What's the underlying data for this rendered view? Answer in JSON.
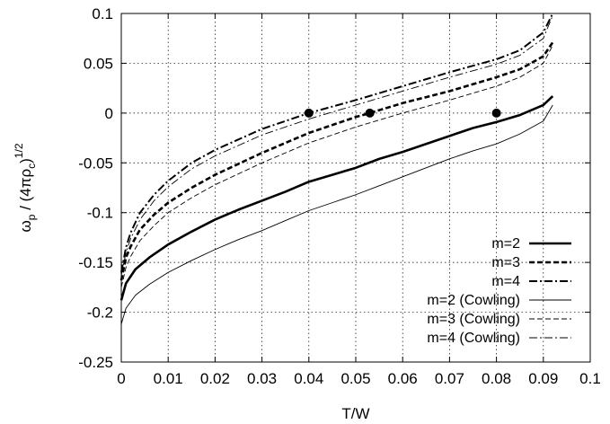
{
  "chart_data": {
    "type": "line",
    "xlabel": "T/W",
    "ylabel": "ω_p / (4πρ_c)^{1/2}",
    "xlim": [
      0,
      0.1
    ],
    "ylim": [
      -0.25,
      0.1
    ],
    "xticks": [
      "0",
      "0.01",
      "0.02",
      "0.03",
      "0.04",
      "0.05",
      "0.06",
      "0.07",
      "0.08",
      "0.09",
      "0.1"
    ],
    "xtick_values": [
      0,
      0.01,
      0.02,
      0.03,
      0.04,
      0.05,
      0.06,
      0.07,
      0.08,
      0.09,
      0.1
    ],
    "yticks": [
      "-0.25",
      "-0.2",
      "-0.15",
      "-0.1",
      "-0.05",
      "0",
      "0.05",
      "0.1"
    ],
    "ytick_values": [
      -0.25,
      -0.2,
      -0.15,
      -0.1,
      -0.05,
      0,
      0.05,
      0.1
    ],
    "grid": true,
    "legend_position": "bottom-right",
    "series": [
      {
        "name": "m=2",
        "style": "solid-thick",
        "points": [
          [
            0,
            -0.188
          ],
          [
            0.001,
            -0.171
          ],
          [
            0.003,
            -0.157
          ],
          [
            0.006,
            -0.145
          ],
          [
            0.01,
            -0.132
          ],
          [
            0.015,
            -0.119
          ],
          [
            0.02,
            -0.107
          ],
          [
            0.025,
            -0.097
          ],
          [
            0.03,
            -0.088
          ],
          [
            0.035,
            -0.079
          ],
          [
            0.04,
            -0.069
          ],
          [
            0.045,
            -0.062
          ],
          [
            0.05,
            -0.055
          ],
          [
            0.055,
            -0.046
          ],
          [
            0.06,
            -0.039
          ],
          [
            0.065,
            -0.031
          ],
          [
            0.07,
            -0.023
          ],
          [
            0.075,
            -0.015
          ],
          [
            0.08,
            -0.009
          ],
          [
            0.085,
            -0.002
          ],
          [
            0.09,
            0.008
          ],
          [
            0.092,
            0.017
          ]
        ]
      },
      {
        "name": "m=3",
        "style": "dashed-thick",
        "points": [
          [
            0,
            -0.168
          ],
          [
            0.001,
            -0.145
          ],
          [
            0.002,
            -0.134
          ],
          [
            0.004,
            -0.117
          ],
          [
            0.007,
            -0.102
          ],
          [
            0.01,
            -0.09
          ],
          [
            0.015,
            -0.075
          ],
          [
            0.02,
            -0.062
          ],
          [
            0.03,
            -0.04
          ],
          [
            0.04,
            -0.02
          ],
          [
            0.05,
            -0.004
          ],
          [
            0.053,
            0.0
          ],
          [
            0.06,
            0.01
          ],
          [
            0.07,
            0.022
          ],
          [
            0.08,
            0.036
          ],
          [
            0.085,
            0.044
          ],
          [
            0.09,
            0.057
          ],
          [
            0.092,
            0.071
          ]
        ]
      },
      {
        "name": "m=4",
        "style": "dashdot-thick",
        "points": [
          [
            0,
            -0.16
          ],
          [
            0.001,
            -0.135
          ],
          [
            0.002,
            -0.12
          ],
          [
            0.004,
            -0.1
          ],
          [
            0.007,
            -0.082
          ],
          [
            0.01,
            -0.068
          ],
          [
            0.015,
            -0.05
          ],
          [
            0.02,
            -0.037
          ],
          [
            0.03,
            -0.016
          ],
          [
            0.04,
            0.0
          ],
          [
            0.05,
            0.013
          ],
          [
            0.06,
            0.027
          ],
          [
            0.07,
            0.041
          ],
          [
            0.08,
            0.054
          ],
          [
            0.085,
            0.063
          ],
          [
            0.09,
            0.081
          ],
          [
            0.092,
            0.1
          ]
        ]
      },
      {
        "name": "m=2 (Cowling)",
        "style": "solid-thin",
        "points": [
          [
            0,
            -0.212
          ],
          [
            0.001,
            -0.196
          ],
          [
            0.003,
            -0.183
          ],
          [
            0.006,
            -0.172
          ],
          [
            0.01,
            -0.16
          ],
          [
            0.015,
            -0.148
          ],
          [
            0.02,
            -0.137
          ],
          [
            0.025,
            -0.127
          ],
          [
            0.03,
            -0.118
          ],
          [
            0.035,
            -0.108
          ],
          [
            0.04,
            -0.098
          ],
          [
            0.045,
            -0.09
          ],
          [
            0.05,
            -0.082
          ],
          [
            0.055,
            -0.073
          ],
          [
            0.06,
            -0.064
          ],
          [
            0.065,
            -0.055
          ],
          [
            0.07,
            -0.046
          ],
          [
            0.075,
            -0.038
          ],
          [
            0.08,
            -0.031
          ],
          [
            0.085,
            -0.021
          ],
          [
            0.09,
            -0.008
          ],
          [
            0.092,
            0.008
          ]
        ]
      },
      {
        "name": "m=3 (Cowling)",
        "style": "dashed-thin",
        "points": [
          [
            0,
            -0.175
          ],
          [
            0.001,
            -0.155
          ],
          [
            0.002,
            -0.144
          ],
          [
            0.004,
            -0.128
          ],
          [
            0.007,
            -0.113
          ],
          [
            0.01,
            -0.1
          ],
          [
            0.015,
            -0.085
          ],
          [
            0.02,
            -0.072
          ],
          [
            0.03,
            -0.05
          ],
          [
            0.04,
            -0.03
          ],
          [
            0.05,
            -0.014
          ],
          [
            0.06,
            0.0
          ],
          [
            0.07,
            0.013
          ],
          [
            0.08,
            0.027
          ],
          [
            0.085,
            0.036
          ],
          [
            0.09,
            0.05
          ],
          [
            0.092,
            0.068
          ]
        ]
      },
      {
        "name": "m=4 (Cowling)",
        "style": "dashdot-thin",
        "points": [
          [
            0,
            -0.163
          ],
          [
            0.001,
            -0.14
          ],
          [
            0.002,
            -0.126
          ],
          [
            0.004,
            -0.107
          ],
          [
            0.007,
            -0.088
          ],
          [
            0.01,
            -0.074
          ],
          [
            0.015,
            -0.056
          ],
          [
            0.02,
            -0.043
          ],
          [
            0.03,
            -0.022
          ],
          [
            0.04,
            -0.006
          ],
          [
            0.05,
            0.008
          ],
          [
            0.06,
            0.022
          ],
          [
            0.07,
            0.036
          ],
          [
            0.08,
            0.049
          ],
          [
            0.085,
            0.058
          ],
          [
            0.09,
            0.075
          ],
          [
            0.092,
            0.098
          ]
        ]
      }
    ],
    "markers": [
      {
        "x": 0.04,
        "y": 0.0
      },
      {
        "x": 0.053,
        "y": 0.0
      },
      {
        "x": 0.08,
        "y": 0.0
      }
    ]
  }
}
